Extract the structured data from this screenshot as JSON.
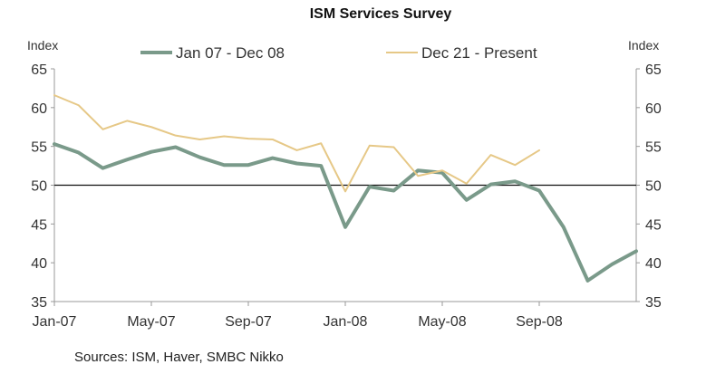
{
  "chart_data": {
    "type": "line",
    "title": "ISM Services Survey",
    "ylabel_left": "Index",
    "ylabel_right": "Index",
    "ylim": [
      35,
      65
    ],
    "yticks": [
      35,
      40,
      45,
      50,
      55,
      60,
      65
    ],
    "x_tick_labels": [
      "Jan-07",
      "May-07",
      "Sep-07",
      "Jan-08",
      "May-08",
      "Sep-08"
    ],
    "x_tick_positions": [
      0,
      4,
      8,
      12,
      16,
      20
    ],
    "x_range": [
      0,
      24
    ],
    "reference_line": 50,
    "series": [
      {
        "name": "Jan 07 - Dec 08",
        "color": "#7a9a8a",
        "values": [
          55.3,
          54.2,
          52.2,
          53.3,
          54.3,
          54.9,
          53.6,
          52.6,
          52.6,
          53.5,
          52.8,
          52.5,
          44.6,
          49.8,
          49.3,
          51.9,
          51.6,
          48.1,
          50.1,
          50.5,
          49.3,
          44.6,
          37.7,
          39.8,
          41.5
        ]
      },
      {
        "name": "Dec 21 - Present",
        "color": "#e6c887",
        "values": [
          61.6,
          60.3,
          57.2,
          58.3,
          57.5,
          56.4,
          55.9,
          56.3,
          56.0,
          55.9,
          54.5,
          55.4,
          49.2,
          55.1,
          54.9,
          51.2,
          51.9,
          50.2,
          53.9,
          52.6,
          54.5
        ]
      }
    ]
  },
  "footer": {
    "source": "Sources: ISM, Haver, SMBC Nikko"
  }
}
